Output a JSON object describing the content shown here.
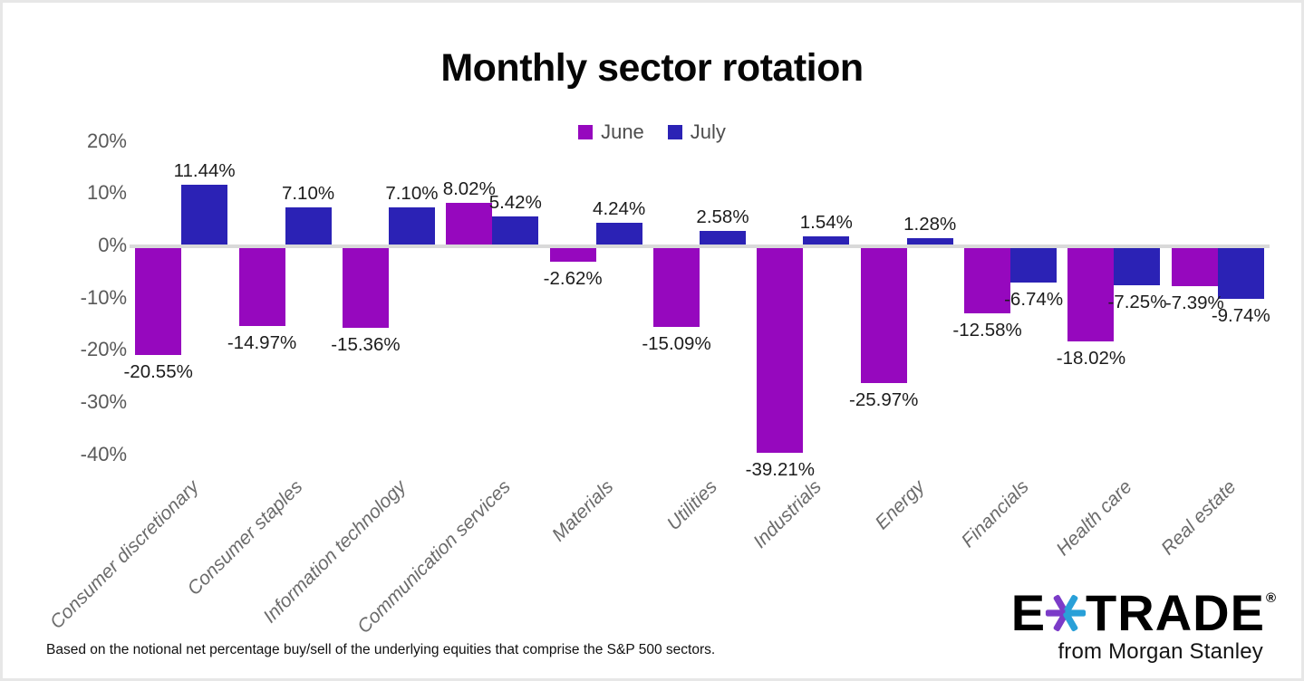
{
  "footer": "Based on the notional net percentage buy/sell of the underlying equities that comprise the S&P 500 sectors.",
  "logo": {
    "e": "E",
    "trade": "TRADE",
    "reg": "®",
    "tagline": "from Morgan Stanley",
    "asterisk_purple": "#7b3bc8",
    "asterisk_blue": "#29a0d8"
  },
  "chart_data": {
    "type": "bar",
    "title": "Monthly sector rotation",
    "xlabel": "",
    "ylabel": "",
    "ylim": [
      -45,
      22
    ],
    "grid": false,
    "legend_position": "top",
    "zero_line_color": "#d9d9d9",
    "categories": [
      "Consumer discretionary",
      "Consumer staples",
      "Information technology",
      "Communication services",
      "Materials",
      "Utilities",
      "Industrials",
      "Energy",
      "Financials",
      "Health care",
      "Real estate"
    ],
    "series": [
      {
        "name": "June",
        "color": "#9608be",
        "values": [
          -20.55,
          -14.97,
          -15.36,
          8.02,
          -2.62,
          -15.09,
          -39.21,
          -25.97,
          -12.58,
          -18.02,
          -7.39
        ],
        "labels": [
          "-20.55%",
          "-14.97%",
          "-15.36%",
          "8.02%",
          "-2.62%",
          "-15.09%",
          "-39.21%",
          "-25.97%",
          "-12.58%",
          "-18.02%",
          "-7.39%"
        ]
      },
      {
        "name": "July",
        "color": "#2b22b5",
        "values": [
          11.44,
          7.1,
          7.1,
          5.42,
          4.24,
          2.58,
          1.54,
          1.28,
          -6.74,
          -7.25,
          -9.74
        ],
        "labels": [
          "11.44%",
          "7.10%",
          "7.10%",
          "5.42%",
          "4.24%",
          "2.58%",
          "1.54%",
          "1.28%",
          "-6.74%",
          "-7.25%",
          "-9.74%"
        ]
      }
    ],
    "y_ticks": [
      {
        "value": 20,
        "label": "20%"
      },
      {
        "value": 10,
        "label": "10%"
      },
      {
        "value": 0,
        "label": "0%"
      },
      {
        "value": -10,
        "label": "-10%"
      },
      {
        "value": -20,
        "label": "-20%"
      },
      {
        "value": -30,
        "label": "-30%"
      },
      {
        "value": -40,
        "label": "-40%"
      }
    ]
  }
}
